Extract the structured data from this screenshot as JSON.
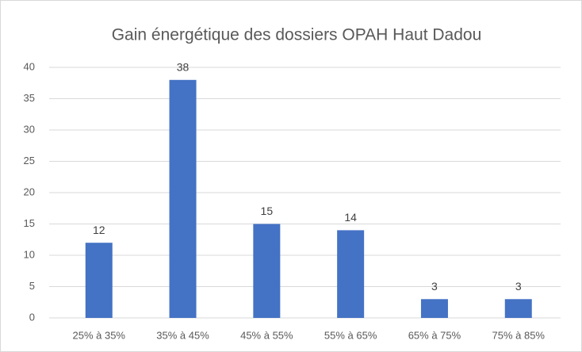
{
  "chart_data": {
    "type": "bar",
    "title": "Gain énergétique des dossiers OPAH Haut Dadou",
    "categories": [
      "25% à 35%",
      "35% à 45%",
      "45% à 55%",
      "55% à 65%",
      "65% à 75%",
      "75% à 85%"
    ],
    "values": [
      12,
      38,
      15,
      14,
      3,
      3
    ],
    "color": "#4472c4",
    "ylim": [
      0,
      40
    ],
    "yticks": [
      0,
      5,
      10,
      15,
      20,
      25,
      30,
      35,
      40
    ],
    "grid": true,
    "data_labels": true
  }
}
